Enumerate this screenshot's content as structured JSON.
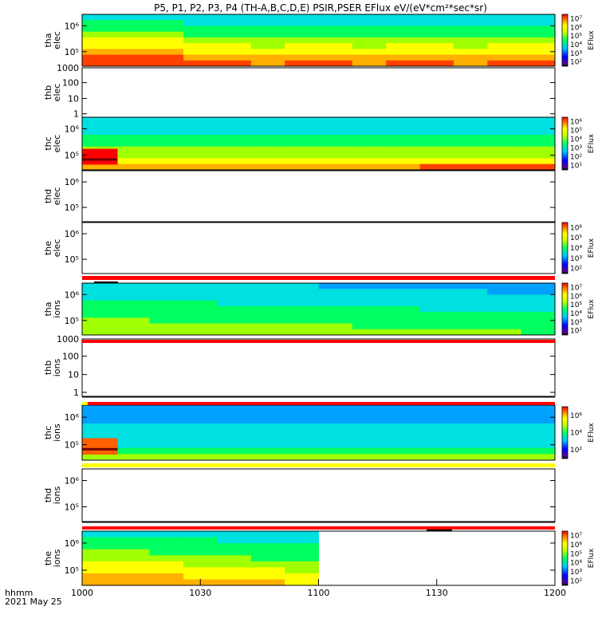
{
  "title": "P5, P1, P2, P3, P4 (TH-A,B,C,D,E) PSIR,PSER EFlux eV/(eV*cm²*sec*sr)",
  "footer": {
    "line1": "hhmm",
    "line2": "2021 May 25"
  },
  "x_axis": {
    "range": [
      1000,
      1200
    ],
    "ticks": [
      "1000",
      "1030",
      "1100",
      "1130",
      "1200"
    ]
  },
  "colors": {
    "red_bar": "#ff0000",
    "yellow_bar": "#ffff00",
    "black_mark": "#000000"
  },
  "chart_data": [
    {
      "type": "heatmap",
      "probe": "tha",
      "species": "elec",
      "ylabel": [
        "tha",
        "elec"
      ],
      "y_tick_labels": [
        "10⁶",
        "10⁵"
      ],
      "colorbar": {
        "label": "EFlux",
        "tick_labels": [
          "10⁷",
          "10⁶",
          "10⁵",
          "10⁴",
          "10³",
          "10²"
        ]
      },
      "description_of_data": "eflux spectrogram, high flux at low energies"
    },
    {
      "type": "heatmap",
      "probe": "thb",
      "species": "elec",
      "ylabel": [
        "thb",
        "elec"
      ],
      "y_tick_labels": [
        "1000",
        "100",
        "10",
        "1"
      ],
      "empty": true
    },
    {
      "type": "heatmap",
      "probe": "thc",
      "species": "elec",
      "ylabel": [
        "thc",
        "elec"
      ],
      "y_tick_labels": [
        "10⁶",
        "10⁵"
      ],
      "colorbar": {
        "label": "EFlux",
        "tick_labels": [
          "10⁶",
          "10⁵",
          "10⁴",
          "10³",
          "10²",
          "10¹"
        ]
      }
    },
    {
      "type": "heatmap",
      "probe": "thd",
      "species": "elec",
      "ylabel": [
        "thd",
        "elec"
      ],
      "y_tick_labels": [
        "10⁶",
        "10⁵"
      ],
      "empty": true
    },
    {
      "type": "heatmap",
      "probe": "the",
      "species": "elec",
      "ylabel": [
        "the",
        "elec"
      ],
      "y_tick_labels": [
        "10⁶",
        "10⁵"
      ],
      "empty": true,
      "colorbar": {
        "label": "EFlux",
        "tick_labels": [
          "10⁶",
          "10⁵",
          "10⁴",
          "10³",
          "10²"
        ]
      }
    },
    {
      "type": "heatmap",
      "probe": "tha",
      "species": "ions",
      "ylabel": [
        "tha",
        "ions"
      ],
      "y_tick_labels": [
        "10⁶",
        "10⁵"
      ],
      "colorbar": {
        "label": "EFlux",
        "tick_labels": [
          "10⁷",
          "10⁶",
          "10⁵",
          "10⁴",
          "10³",
          "10²"
        ]
      }
    },
    {
      "type": "heatmap",
      "probe": "thb",
      "species": "ions",
      "ylabel": [
        "thb",
        "ions"
      ],
      "y_tick_labels": [
        "1000",
        "100",
        "10",
        "1"
      ],
      "empty": true
    },
    {
      "type": "heatmap",
      "probe": "thc",
      "species": "ions",
      "ylabel": [
        "thc",
        "ions"
      ],
      "y_tick_labels": [
        "10⁶",
        "10⁵"
      ],
      "colorbar": {
        "label": "EFlux",
        "tick_labels": [
          "10⁶",
          "10⁴",
          "10²"
        ]
      }
    },
    {
      "type": "heatmap",
      "probe": "thd",
      "species": "ions",
      "ylabel": [
        "thd",
        "ions"
      ],
      "y_tick_labels": [
        "10⁶",
        "10⁵"
      ],
      "empty": true
    },
    {
      "type": "heatmap",
      "probe": "the",
      "species": "ions",
      "ylabel": [
        "the",
        "ions"
      ],
      "y_tick_labels": [
        "10⁶",
        "10⁵"
      ],
      "data_end_time": 1100,
      "colorbar": {
        "label": "EFlux",
        "tick_labels": [
          "10⁷",
          "10⁶",
          "10⁵",
          "10⁴",
          "10³",
          "10²"
        ]
      }
    }
  ]
}
